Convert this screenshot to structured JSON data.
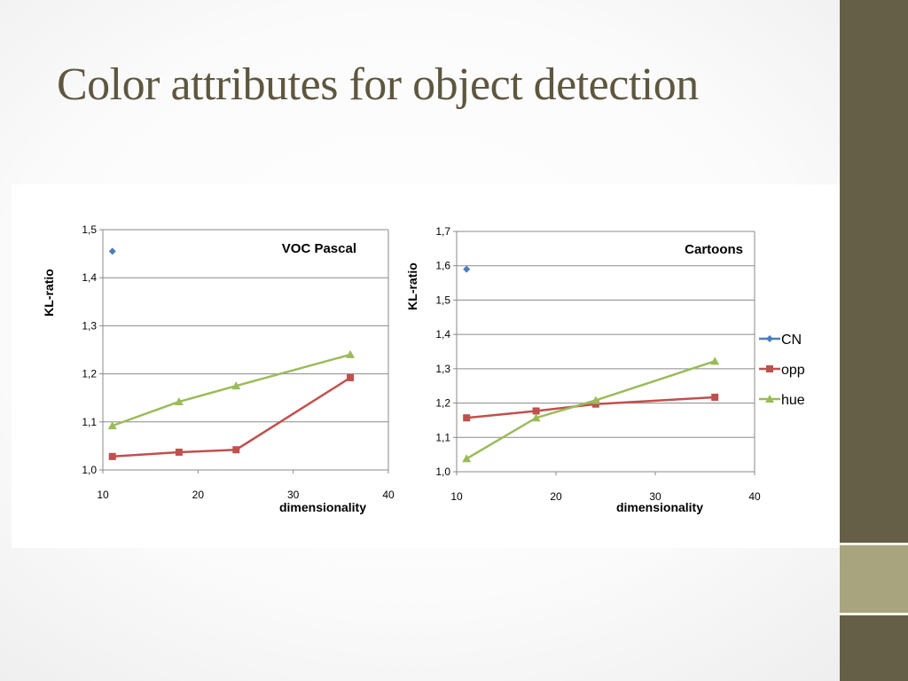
{
  "slide": {
    "title": "Color attributes for object detection"
  },
  "colors": {
    "CN": "#4a7ebb",
    "opp": "#c0504d",
    "hue": "#9bbb59",
    "side_dark": "#655f47",
    "side_light": "#a8a57e",
    "title": "#5e5740"
  },
  "chart_data": [
    {
      "type": "line",
      "title": "VOC Pascal",
      "xlabel": "dimensionality",
      "ylabel": "KL-ratio",
      "xlim": [
        10,
        40
      ],
      "ylim": [
        1.0,
        1.5
      ],
      "x_ticks": [
        "10",
        "20",
        "30",
        "40"
      ],
      "y_ticks": [
        "1,0",
        "1,1",
        "1,2",
        "1,3",
        "1,4",
        "1,5"
      ],
      "grid": "horizontal",
      "series": [
        {
          "name": "CN",
          "marker": "diamond",
          "points": [
            [
              11,
              1.455
            ]
          ]
        },
        {
          "name": "opp",
          "marker": "square",
          "points": [
            [
              11,
              1.028
            ],
            [
              18,
              1.037
            ],
            [
              24,
              1.042
            ],
            [
              36,
              1.192
            ]
          ]
        },
        {
          "name": "hue",
          "marker": "triangle",
          "points": [
            [
              11,
              1.092
            ],
            [
              18,
              1.142
            ],
            [
              24,
              1.175
            ],
            [
              36,
              1.24
            ]
          ]
        }
      ]
    },
    {
      "type": "line",
      "title": "Cartoons",
      "xlabel": "dimensionality",
      "ylabel": "KL-ratio",
      "xlim": [
        10,
        40
      ],
      "ylim": [
        1.0,
        1.7
      ],
      "x_ticks": [
        "10",
        "20",
        "30",
        "40"
      ],
      "y_ticks": [
        "1,0",
        "1,1",
        "1,2",
        "1,3",
        "1,4",
        "1,5",
        "1,6",
        "1,7"
      ],
      "grid": "horizontal",
      "legend": "right",
      "series": [
        {
          "name": "CN",
          "marker": "diamond",
          "points": [
            [
              11,
              1.59
            ]
          ]
        },
        {
          "name": "opp",
          "marker": "square",
          "points": [
            [
              11,
              1.157
            ],
            [
              18,
              1.177
            ],
            [
              24,
              1.197
            ],
            [
              36,
              1.217
            ]
          ]
        },
        {
          "name": "hue",
          "marker": "triangle",
          "points": [
            [
              11,
              1.038
            ],
            [
              18,
              1.157
            ],
            [
              24,
              1.208
            ],
            [
              36,
              1.322
            ]
          ]
        }
      ]
    }
  ]
}
